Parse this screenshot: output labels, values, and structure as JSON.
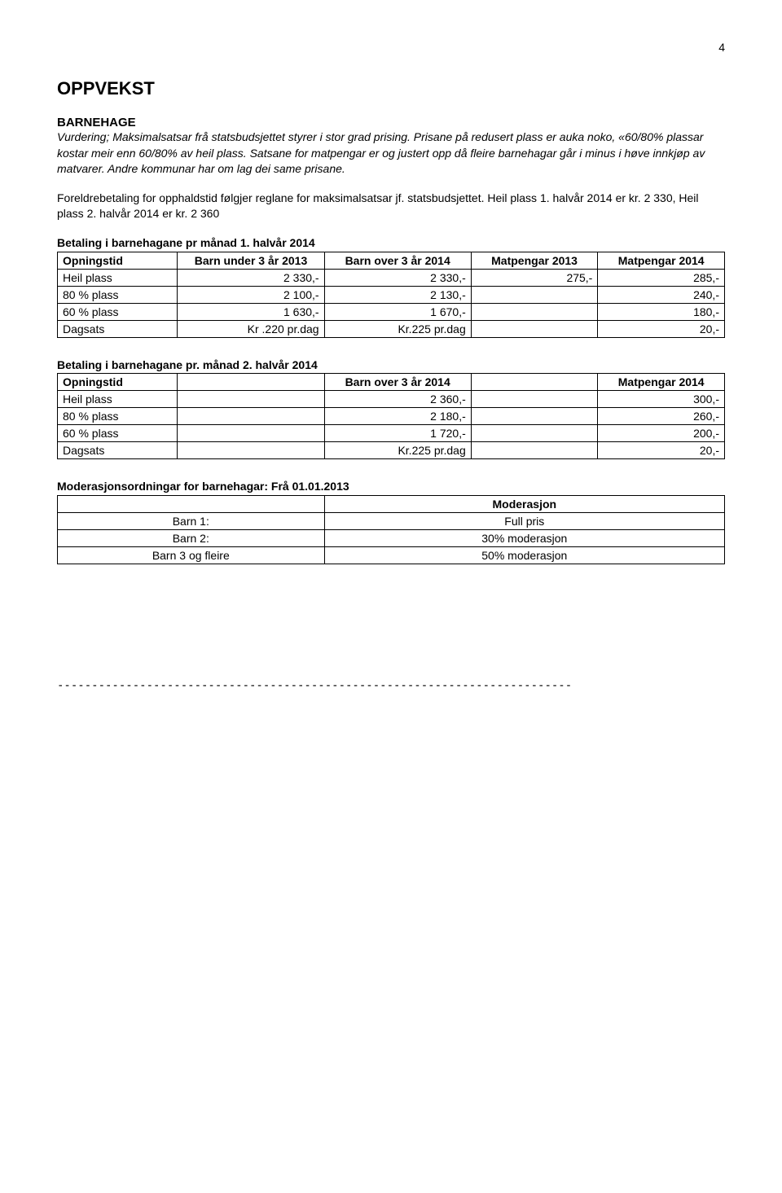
{
  "page_number": "4",
  "heading": "OPPVEKST",
  "subheading": "BARNEHAGE",
  "intro_italic": "Vurdering; Maksimalsatsar frå statsbudsjettet styrer i stor grad prising. Prisane på redusert plass er auka noko, «60/80% plassar kostar meir enn 60/80% av heil plass. Satsane for matpengar er og justert opp då  fleire barnehagar går i minus i høve innkjøp av matvarer. Andre kommunar har om lag dei same prisane.",
  "para2": "Foreldrebetaling for opphaldstid følgjer reglane for maksimalsatsar jf. statsbudsjettet. Heil plass 1. halvår 2014 er kr. 2 330, Heil plass 2. halvår 2014 er kr. 2 360",
  "table1_title": "Betaling i barnehagane pr månad 1. halvår 2014",
  "table1": {
    "headers": [
      "Opningstid",
      "Barn under 3 år 2013",
      "Barn over 3 år 2014",
      "Matpengar 2013",
      "Matpengar 2014"
    ],
    "rows": [
      [
        "Heil plass",
        "2 330,-",
        "2 330,-",
        "275,-",
        "285,-"
      ],
      [
        "80 % plass",
        "2 100,-",
        "2 130,-",
        "",
        "240,-"
      ],
      [
        "60 % plass",
        "1 630,-",
        "1 670,-",
        "",
        "180,-"
      ],
      [
        "Dagsats",
        "Kr .220 pr.dag",
        "Kr.225 pr.dag",
        "",
        "20,-"
      ]
    ]
  },
  "table2_title": "Betaling i barnehagane pr. månad 2. halvår 2014",
  "table2": {
    "headers": [
      "Opningstid",
      "",
      "Barn over 3 år 2014",
      "",
      "Matpengar 2014"
    ],
    "rows": [
      [
        "Heil plass",
        "",
        "2 360,-",
        "",
        "300,-"
      ],
      [
        "80 % plass",
        "",
        "2 180,-",
        "",
        "260,-"
      ],
      [
        "60 % plass",
        "",
        "1 720,-",
        "",
        "200,-"
      ],
      [
        "Dagsats",
        "",
        "Kr.225 pr.dag",
        "",
        "20,-"
      ]
    ]
  },
  "table3_title": "Moderasjonsordningar for barnehagar: Frå 01.01.2013",
  "table3": {
    "headers": [
      "",
      "Moderasjon"
    ],
    "rows": [
      [
        "Barn 1:",
        "Full pris"
      ],
      [
        "Barn 2:",
        "30% moderasjon"
      ],
      [
        "Barn 3 og fleire",
        "50% moderasjon"
      ]
    ]
  },
  "dashes": "---------------------------------------------------------------------------",
  "colors": {
    "text": "#000000",
    "background": "#ffffff",
    "border": "#000000"
  },
  "font": {
    "family": "Verdana",
    "body_size_pt": 11,
    "h1_size_pt": 16
  }
}
